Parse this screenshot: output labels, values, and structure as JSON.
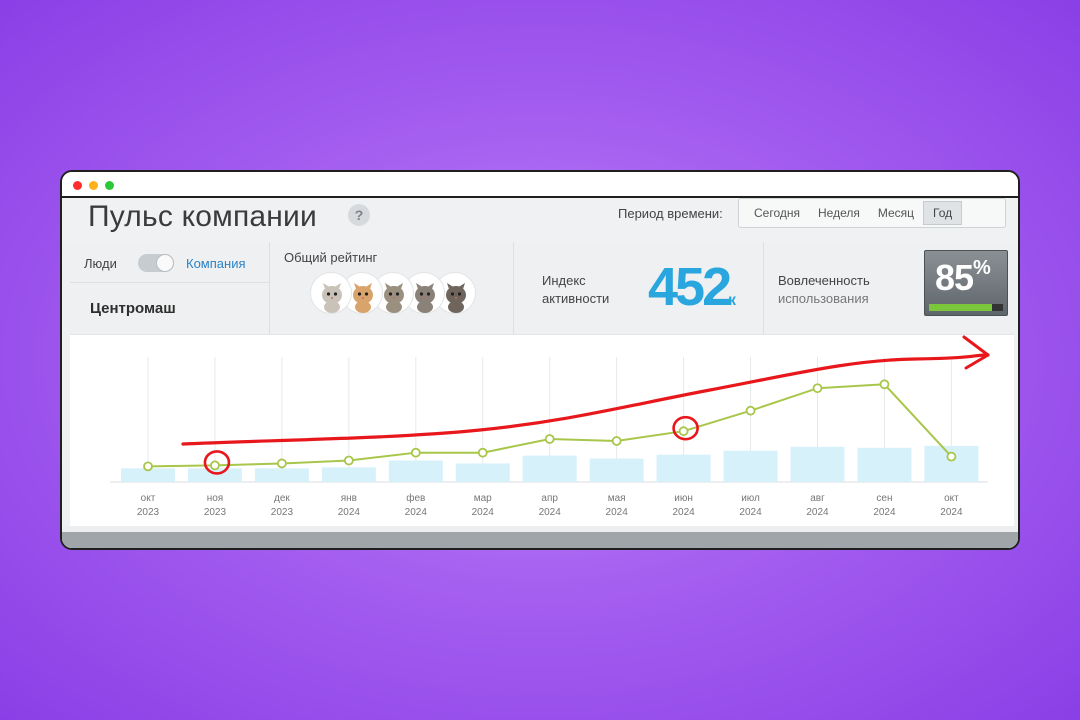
{
  "window": {
    "controls": [
      "close",
      "minimize",
      "maximize"
    ]
  },
  "header": {
    "title": "Пульс компании",
    "help_icon": "?",
    "period_label": "Период времени:",
    "periods": [
      {
        "label": "Сегодня",
        "active": false
      },
      {
        "label": "Неделя",
        "active": false
      },
      {
        "label": "Месяц",
        "active": false
      },
      {
        "label": "Год",
        "active": true
      }
    ]
  },
  "stats": {
    "scope": {
      "people_label": "Люди",
      "company_label": "Компания",
      "toggle_selected": "Компания"
    },
    "company_name": "Центромаш",
    "rating": {
      "title": "Общий рейтинг",
      "icons": [
        "kitten-icon",
        "kitten-icon",
        "kitten-icon",
        "kitten-icon",
        "kitten-icon"
      ]
    },
    "activity": {
      "label_line1": "Индекс",
      "label_line2": "активности",
      "value": "452",
      "unit": "к"
    },
    "engagement": {
      "label_line1": "Вовлеченность",
      "label_line2": "использования",
      "value": "85",
      "unit": "%",
      "fill_fraction": 0.85
    }
  },
  "chart_data": {
    "type": "bar+line",
    "categories": [
      {
        "month": "окт",
        "year": "2023"
      },
      {
        "month": "ноя",
        "year": "2023"
      },
      {
        "month": "дек",
        "year": "2023"
      },
      {
        "month": "янв",
        "year": "2024"
      },
      {
        "month": "фев",
        "year": "2024"
      },
      {
        "month": "мар",
        "year": "2024"
      },
      {
        "month": "апр",
        "year": "2024"
      },
      {
        "month": "мая",
        "year": "2024"
      },
      {
        "month": "июн",
        "year": "2024"
      },
      {
        "month": "июл",
        "year": "2024"
      },
      {
        "month": "авг",
        "year": "2024"
      },
      {
        "month": "сен",
        "year": "2024"
      },
      {
        "month": "окт",
        "year": "2024"
      }
    ],
    "bars": [
      14,
      14,
      14,
      15,
      22,
      19,
      27,
      24,
      28,
      32,
      36,
      35,
      37
    ],
    "line": [
      16,
      17,
      19,
      22,
      30,
      30,
      44,
      42,
      52,
      73,
      96,
      100,
      26
    ],
    "ylim": [
      0,
      130
    ],
    "grid": "vertical",
    "colors": {
      "bars": "#d7f1fb",
      "line": "#a8c64a",
      "point_fill": "#ffffff",
      "annotation": "#e8171c"
    },
    "annotations": [
      {
        "type": "circle",
        "index": 1
      },
      {
        "type": "circle",
        "index": 8
      },
      {
        "type": "trend-arrow"
      }
    ]
  }
}
